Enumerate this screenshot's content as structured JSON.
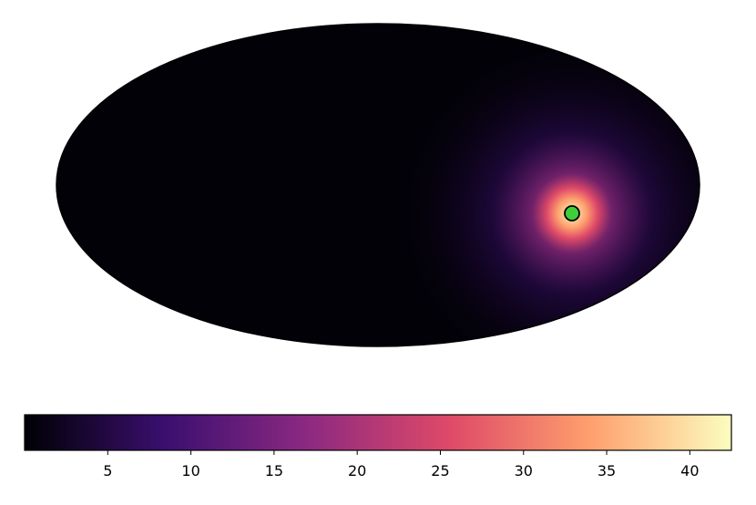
{
  "chart_data": {
    "type": "skymap",
    "projection": "mollweide",
    "colormap": [
      "#000004",
      "#3b0f70",
      "#8c2981",
      "#de4968",
      "#fe9f6d",
      "#fcfdbf"
    ],
    "clim": [
      0,
      42.5
    ],
    "cticks": [
      5,
      10,
      15,
      20,
      25,
      30,
      35,
      40
    ]
  }
}
